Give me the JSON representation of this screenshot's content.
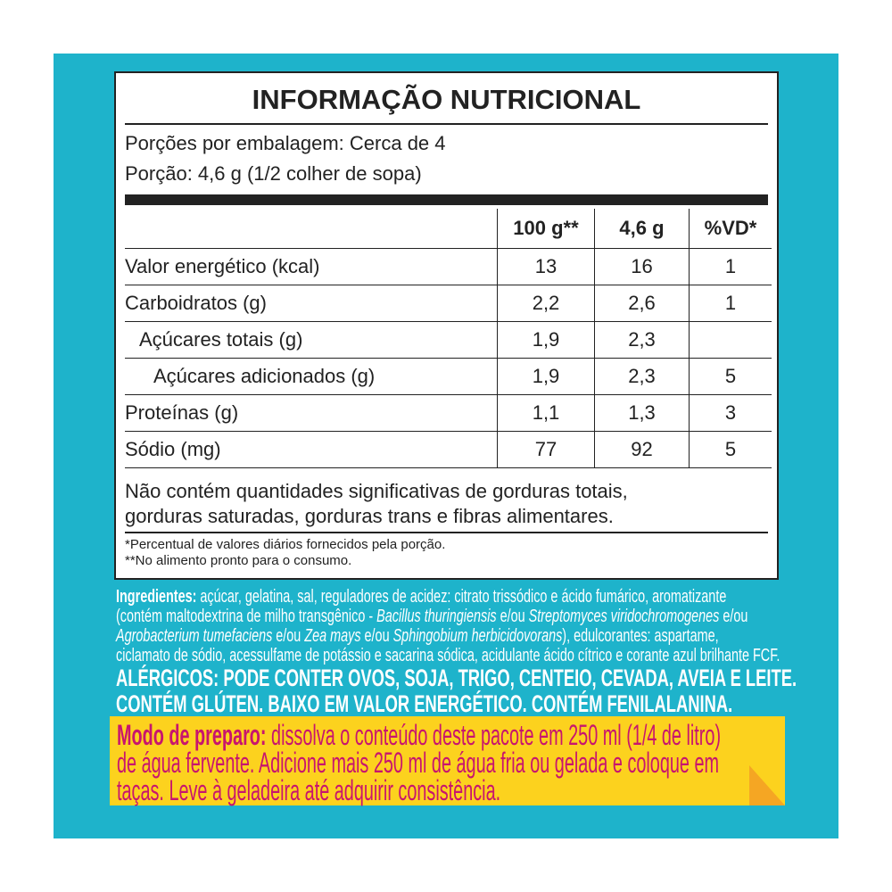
{
  "label": {
    "title": "INFORMAÇÃO NUTRICIONAL",
    "servings": "Porções por embalagem: Cerca de 4",
    "portion": "Porção: 4,6 g (1/2 colher de sopa)",
    "columns": [
      "",
      "100 g**",
      "4,6 g",
      "%VD*"
    ],
    "rows": [
      [
        "Valor energético (kcal)",
        "13",
        "16",
        "1"
      ],
      [
        "Carboidratos (g)",
        "2,2",
        "2,6",
        "1"
      ],
      [
        "Açúcares totais (g)",
        "1,9",
        "2,3",
        ""
      ],
      [
        "Açúcares adicionados (g)",
        "1,9",
        "2,3",
        "5"
      ],
      [
        "Proteínas (g)",
        "1,1",
        "1,3",
        "3"
      ],
      [
        "Sódio (mg)",
        "77",
        "92",
        "5"
      ]
    ],
    "note_lines": [
      "Não contém quantidades significativas de gorduras totais,",
      "gorduras saturadas, gorduras trans e fibras alimentares."
    ],
    "footnotes": [
      "*Percentual de valores diários fornecidos pela porção.",
      "**No alimento pronto para o consumo."
    ]
  },
  "ingredients": {
    "heading": "Ingredientes:",
    "l1": " açúcar, gelatina, sal, reguladores de acidez: citrato trissódico e ácido fumárico, aromatizante",
    "l2a": "(contém maltodextrina de milho transgênico - ",
    "l2b": "Bacillus thuringiensis",
    "l2c": " e/ou ",
    "l2d": "Streptomyces viridochromogenes",
    "l2e": " e/ou",
    "l3a": "Agrobacterium tumefaciens",
    "l3b": " e/ou ",
    "l3c": "Zea mays",
    "l3d": " e/ou ",
    "l3e": "Sphingobium herbicidovorans",
    "l3f": "), edulcorantes: aspartame,",
    "l4": "ciclamato de sódio, acessulfame de potássio e sacarina sódica, acidulante ácido cítrico e corante azul brilhante FCF.",
    "allergens": "ALÉRGICOS: PODE CONTER OVOS, SOJA, TRIGO, CENTEIO, CEVADA, AVEIA E LEITE.",
    "warnings": "CONTÉM GLÚTEN. BAIXO EM VALOR ENERGÉTICO. CONTÉM FENILALANINA."
  },
  "preparation": {
    "heading": "Modo de preparo:",
    "l1": " dissolva o conteúdo deste pacote em 250 ml (1/4 de litro)",
    "l2": "de água fervente. Adicione mais 250 ml de água fria ou gelada e coloque em",
    "l3": "taças. Leve à geladeira até adquirir consistência."
  },
  "colors": {
    "background": "#1eb3cb",
    "note": "#fcd21e",
    "note_text": "#c8156e"
  }
}
